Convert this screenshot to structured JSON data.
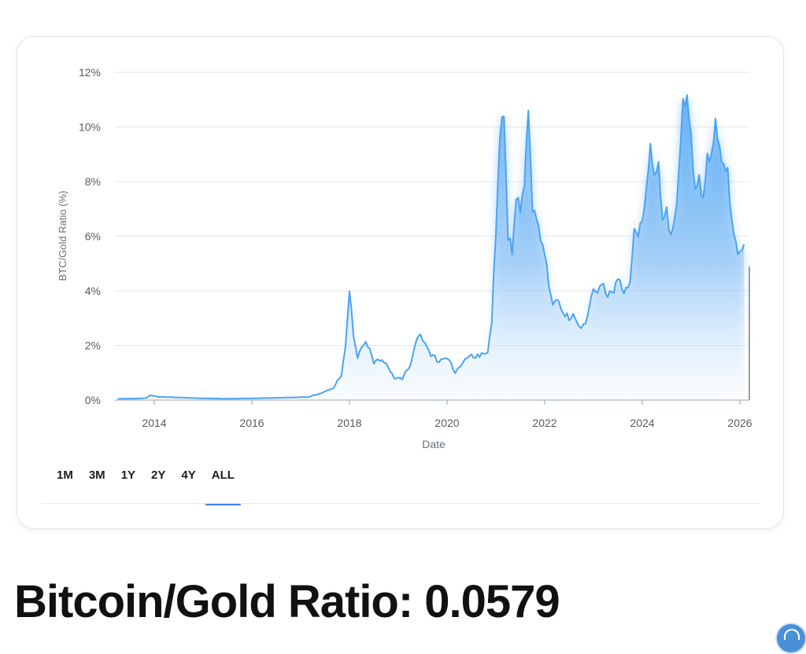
{
  "ranges": {
    "items": [
      "1M",
      "3M",
      "1Y",
      "2Y",
      "4Y",
      "ALL"
    ],
    "active": "ALL"
  },
  "headline": "Bitcoin/Gold Ratio: 0.0579",
  "colors": {
    "line": "#4ba3f2",
    "area_top": "#4ba3f2",
    "grid": "#e5e7eb",
    "axis_text": "#555a61",
    "active_tab": "#3b82f6"
  },
  "chart_data": {
    "type": "area",
    "title": "",
    "xlabel": "Date",
    "ylabel": "BTC/Gold Ratio (%)",
    "x_ticks": [
      "2014",
      "2016",
      "2018",
      "2020",
      "2022",
      "2024",
      "2026"
    ],
    "y_ticks": [
      "0%",
      "2%",
      "4%",
      "6%",
      "8%",
      "10%",
      "12%"
    ],
    "xlim": [
      "2013-04",
      "2026-02"
    ],
    "ylim": [
      0,
      12
    ],
    "grid": true,
    "legend": "none",
    "series": [
      {
        "values_x": [
          "2013-04",
          "2013-06",
          "2013-09",
          "2013-11",
          "2013-12",
          "2014-02",
          "2014-06",
          "2014-12",
          "2015-06",
          "2015-12",
          "2016-06",
          "2016-12",
          "2017-03",
          "2017-06",
          "2017-09",
          "2017-11",
          "2017-12",
          "2018-01",
          "2018-02",
          "2018-03",
          "2018-05",
          "2018-07",
          "2018-09",
          "2018-11",
          "2018-12",
          "2019-02",
          "2019-04",
          "2019-06",
          "2019-07",
          "2019-09",
          "2019-11",
          "2020-01",
          "2020-03",
          "2020-06",
          "2020-09",
          "2020-11",
          "2020-12",
          "2021-01",
          "2021-02",
          "2021-03",
          "2021-04",
          "2021-05",
          "2021-06",
          "2021-07",
          "2021-08",
          "2021-09",
          "2021-10",
          "2021-11",
          "2021-12",
          "2022-01",
          "2022-03",
          "2022-04",
          "2022-05",
          "2022-06",
          "2022-08",
          "2022-10",
          "2022-11",
          "2022-12",
          "2023-01",
          "2023-03",
          "2023-05",
          "2023-07",
          "2023-09",
          "2023-10",
          "2023-11",
          "2024-01",
          "2024-02",
          "2024-03",
          "2024-04",
          "2024-05",
          "2024-06",
          "2024-07",
          "2024-08",
          "2024-09",
          "2024-10",
          "2024-11",
          "2024-12",
          "2025-01",
          "2025-02",
          "2025-03",
          "2025-04",
          "2025-05",
          "2025-06",
          "2025-07",
          "2025-08",
          "2025-09",
          "2025-10",
          "2025-11",
          "2025-12",
          "2026-01",
          "2026-02"
        ],
        "values": [
          0.05,
          0.05,
          0.06,
          0.08,
          0.18,
          0.12,
          0.1,
          0.07,
          0.05,
          0.06,
          0.08,
          0.1,
          0.12,
          0.25,
          0.45,
          0.9,
          2.0,
          4.1,
          2.4,
          1.6,
          2.2,
          1.4,
          1.5,
          1.1,
          0.8,
          0.8,
          1.3,
          2.5,
          2.2,
          1.7,
          1.4,
          1.6,
          1.0,
          1.6,
          1.6,
          1.8,
          2.9,
          6.1,
          9.8,
          10.4,
          6.0,
          5.3,
          7.5,
          6.8,
          8.0,
          10.5,
          7.0,
          6.5,
          5.9,
          5.2,
          3.5,
          3.6,
          3.3,
          3.0,
          3.1,
          2.6,
          2.7,
          3.4,
          3.9,
          4.2,
          3.8,
          4.4,
          3.9,
          4.3,
          6.0,
          6.5,
          7.5,
          9.3,
          8.0,
          8.6,
          6.4,
          6.9,
          5.9,
          6.5,
          8.3,
          10.8,
          11.1,
          9.5,
          7.7,
          8.0,
          7.4,
          8.8,
          9.0,
          10.1,
          9.3,
          8.5,
          8.5,
          6.5,
          5.8,
          5.4,
          5.7
        ]
      }
    ]
  }
}
